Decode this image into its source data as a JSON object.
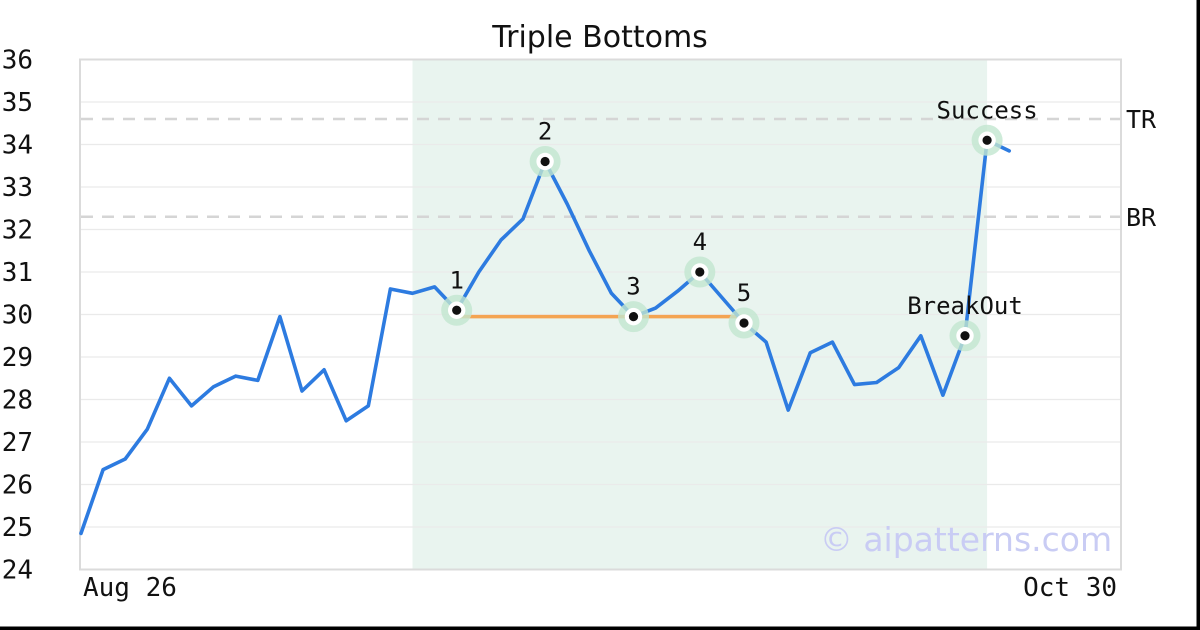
{
  "title": "Triple Bottoms",
  "watermark": "© aipatterns.com",
  "axis": {
    "y_ticks": [
      36,
      35,
      34,
      33,
      32,
      31,
      30,
      29,
      28,
      27,
      26,
      25,
      24
    ],
    "x_tick_left": "Aug 26",
    "x_tick_right": "Oct 30"
  },
  "chart_data": {
    "type": "line",
    "title": "Triple Bottoms",
    "xlabel": "",
    "ylabel": "",
    "ylim": [
      24,
      36
    ],
    "x_tick_labels": [
      "Aug 26",
      "Oct 30"
    ],
    "grid": true,
    "values": [
      24.85,
      26.35,
      26.6,
      27.3,
      28.5,
      27.85,
      28.3,
      28.55,
      28.45,
      29.95,
      28.2,
      28.7,
      27.5,
      27.85,
      30.6,
      30.5,
      30.65,
      30.1,
      31.0,
      31.75,
      32.25,
      33.6,
      32.6,
      31.5,
      30.5,
      29.95,
      30.15,
      30.55,
      31.0,
      30.4,
      29.8,
      29.35,
      27.75,
      29.1,
      29.35,
      28.35,
      28.4,
      28.75,
      29.5,
      28.1,
      29.5,
      34.1,
      33.85
    ],
    "markers": [
      {
        "index": 17,
        "label": "1",
        "value": 30.1
      },
      {
        "index": 21,
        "label": "2",
        "value": 33.6
      },
      {
        "index": 25,
        "label": "3",
        "value": 29.95
      },
      {
        "index": 28,
        "label": "4",
        "value": 31.0
      },
      {
        "index": 30,
        "label": "5",
        "value": 29.8
      },
      {
        "index": 40,
        "label": "BreakOut",
        "value": 29.5
      },
      {
        "index": 41,
        "label": "Success",
        "value": 34.1
      }
    ],
    "neckline": {
      "from_index": 17,
      "to_index": 30,
      "value": 29.95
    },
    "hlines": [
      {
        "label": "TR",
        "value": 34.6
      },
      {
        "label": "BR",
        "value": 32.3
      }
    ],
    "shaded_region": {
      "from_index": 15,
      "to_index": 41
    }
  },
  "colors": {
    "line": "#2d7be0",
    "neckline": "#f4a452",
    "shade": "#e9f4ef",
    "halo": "#c2e6cf",
    "grid": "#eaeaea",
    "plot_border": "#dbdbdb",
    "dashed": "#d5d5d5",
    "text": "#111111",
    "watermark": "#c9ccf4",
    "frame_edge": "#000000",
    "dot": "#111111",
    "dot_ring": "#ffffff"
  }
}
